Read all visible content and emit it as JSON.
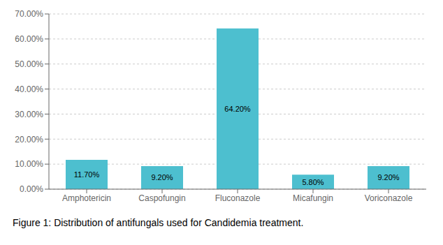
{
  "chart_data": {
    "type": "bar",
    "title": "Figure 1: Distribution of antifungals used for Candidemia treatment.",
    "categories": [
      "Amphotericin",
      "Caspofungin",
      "Fluconazole",
      "Micafungin",
      "Voriconazole"
    ],
    "values": [
      11.7,
      9.2,
      64.2,
      5.8,
      9.2
    ],
    "value_labels": [
      "11.70%",
      "9.20%",
      "64.20%",
      "5.80%",
      "9.20%"
    ],
    "data_labels": true,
    "color": "#4DBFCF",
    "ylim": [
      0,
      70
    ],
    "yticks": [
      {
        "value": 0,
        "label": "0.00%"
      },
      {
        "value": 10,
        "label": "10.00%"
      },
      {
        "value": 20,
        "label": "20.00%"
      },
      {
        "value": 30,
        "label": "30.00%"
      },
      {
        "value": 40,
        "label": "40.00%"
      },
      {
        "value": 50,
        "label": "50.00%"
      },
      {
        "value": 60,
        "label": "60.00%"
      },
      {
        "value": 70,
        "label": "70.00%"
      }
    ],
    "grid": true
  }
}
